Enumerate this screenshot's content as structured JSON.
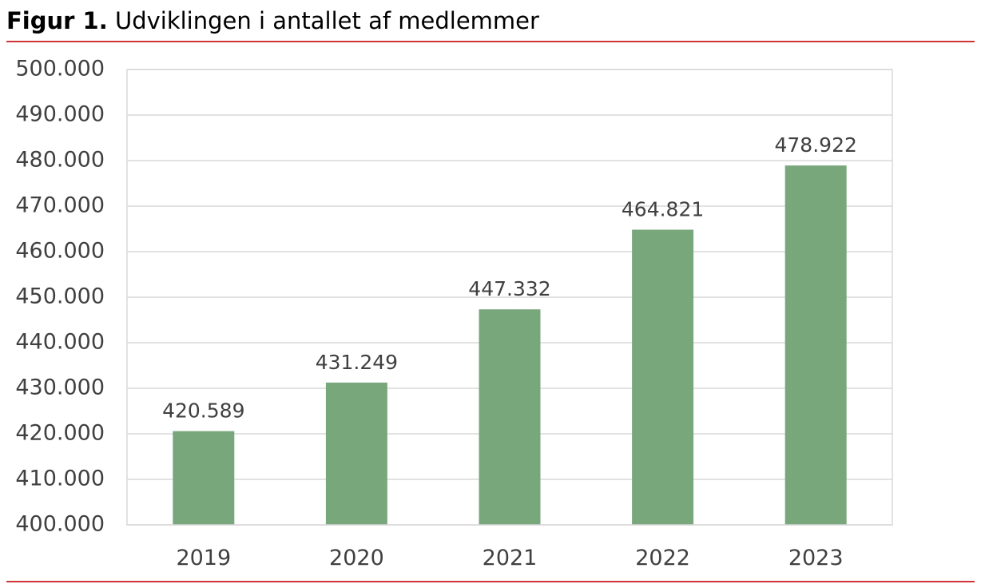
{
  "figure": {
    "number_label": "Figur 1.",
    "title": "Udviklingen i antallet af medlemmer"
  },
  "colors": {
    "accent_rule": "#d13438",
    "bar": "#79a77c",
    "gridline": "#d9d9d9",
    "text": "#404040"
  },
  "chart_data": {
    "type": "bar",
    "title": "Udviklingen i antallet af medlemmer",
    "xlabel": "",
    "ylabel": "",
    "categories": [
      "2019",
      "2020",
      "2021",
      "2022",
      "2023"
    ],
    "values": [
      420589,
      431249,
      447332,
      464821,
      478922
    ],
    "data_labels": [
      "420.589",
      "431.249",
      "447.332",
      "464.821",
      "478.922"
    ],
    "ylim": [
      400000,
      500000
    ],
    "y_ticks": [
      400000,
      410000,
      420000,
      430000,
      440000,
      450000,
      460000,
      470000,
      480000,
      490000,
      500000
    ],
    "y_tick_labels": [
      "400.000",
      "410.000",
      "420.000",
      "430.000",
      "440.000",
      "450.000",
      "460.000",
      "470.000",
      "480.000",
      "490.000",
      "500.000"
    ],
    "grid": true,
    "legend": "none"
  }
}
